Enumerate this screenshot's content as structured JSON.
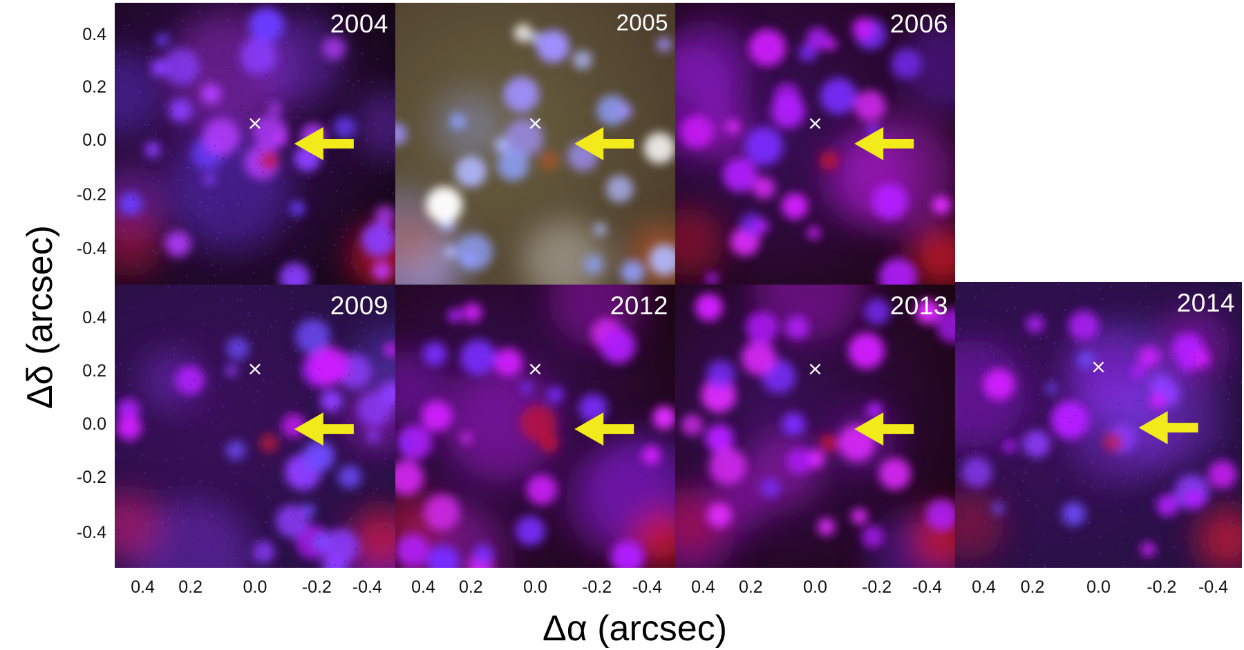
{
  "figure": {
    "xlabel": "Δα (arcsec)",
    "ylabel": "Δδ (arcsec)",
    "xticks": [
      "0.4",
      "0.2",
      "0.0",
      "-0.2",
      "-0.4"
    ],
    "yticks": [
      "0.4",
      "0.2",
      "0.0",
      "-0.2",
      "-0.4"
    ]
  },
  "panels": [
    {
      "year": "2004",
      "style": "blue-red"
    },
    {
      "year": "2005",
      "style": "color"
    },
    {
      "year": "2006",
      "style": "magenta"
    },
    {
      "year": "2009",
      "style": "noisy-magenta"
    },
    {
      "year": "2012",
      "style": "magenta"
    },
    {
      "year": "2013",
      "style": "magenta"
    },
    {
      "year": "2014",
      "style": "noisy-magenta"
    }
  ],
  "markers": {
    "center_marker": "×",
    "arrow_icon": "yellow-left-arrow",
    "arrow_color": "#f2ea1a",
    "marker_color": "#ffffff"
  }
}
